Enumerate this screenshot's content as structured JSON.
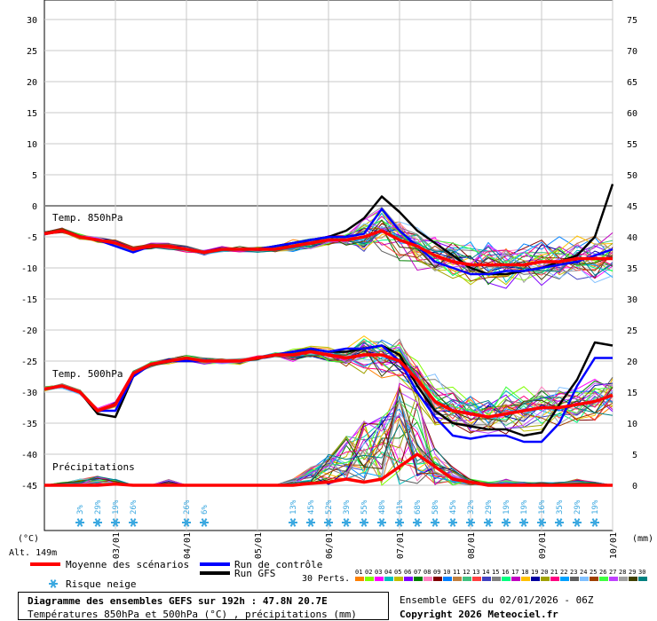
{
  "chart_data": {
    "type": "line",
    "title": "Diagramme des ensembles GEFS sur 192h : 47.8N 20.7E",
    "subtitle": "Températures 850hPa et 500hPa (°C) , précipitations (mm)",
    "left_axis": {
      "unit": "(°C)",
      "ticks": [
        30,
        25,
        20,
        15,
        10,
        5,
        0,
        -5,
        -10,
        -15,
        -20,
        -25,
        -30,
        -35,
        -40,
        -45
      ]
    },
    "right_axis": {
      "unit": "(mm)",
      "ticks": [
        75,
        70,
        65,
        60,
        55,
        50,
        45,
        40,
        35,
        30,
        25,
        20,
        15,
        10,
        5,
        0
      ]
    },
    "x_dates": [
      "03/01",
      "04/01",
      "05/01",
      "06/01",
      "07/01",
      "08/01",
      "09/01",
      "10/01"
    ],
    "altitude": "Alt. 149m",
    "panel_labels": {
      "t850": "Temp. 850hPa",
      "t500": "Temp. 500hPa",
      "precip": "Précipitations"
    },
    "legend": {
      "mean": {
        "label": "Moyenne des scénarios",
        "color": "#ff0000"
      },
      "control": {
        "label": "Run de contrôle",
        "color": "#0000ff"
      },
      "gfs": {
        "label": "Run GFS",
        "color": "#000000"
      },
      "snow": {
        "label": "Risque neige"
      },
      "perts": {
        "label": "30 Perts.",
        "numbers": [
          "01",
          "02",
          "03",
          "04",
          "05",
          "06",
          "07",
          "08",
          "09",
          "10",
          "11",
          "12",
          "13",
          "14",
          "15",
          "16",
          "17",
          "18",
          "19",
          "20",
          "21",
          "22",
          "23",
          "24",
          "25",
          "26",
          "27",
          "28",
          "29",
          "30"
        ],
        "colors": [
          "#ff8000",
          "#80ff00",
          "#ff00ff",
          "#00c0c0",
          "#c0c000",
          "#8000ff",
          "#008000",
          "#ff80c0",
          "#800000",
          "#0080ff",
          "#c08040",
          "#40c080",
          "#ff4040",
          "#4040c0",
          "#808080",
          "#00ff80",
          "#c000c0",
          "#ffc000",
          "#0000a0",
          "#a0a000",
          "#ff0080",
          "#00a0ff",
          "#606060",
          "#80c0ff",
          "#a04000",
          "#40ff40",
          "#c040ff",
          "#a0a0a0",
          "#404000",
          "#008080"
        ]
      }
    },
    "snow_risk": [
      {
        "step": 6,
        "pct": "3%"
      },
      {
        "step": 9,
        "pct": "29%"
      },
      {
        "step": 12,
        "pct": "19%"
      },
      {
        "step": 15,
        "pct": "26%"
      },
      {
        "step": 24,
        "pct": "26%"
      },
      {
        "step": 27,
        "pct": "6%"
      },
      {
        "step": 42,
        "pct": "13%"
      },
      {
        "step": 45,
        "pct": "45%"
      },
      {
        "step": 48,
        "pct": "52%"
      },
      {
        "step": 51,
        "pct": "39%"
      },
      {
        "step": 54,
        "pct": "55%"
      },
      {
        "step": 57,
        "pct": "48%"
      },
      {
        "step": 60,
        "pct": "61%"
      },
      {
        "step": 63,
        "pct": "68%"
      },
      {
        "step": 66,
        "pct": "58%"
      },
      {
        "step": 69,
        "pct": "45%"
      },
      {
        "step": 72,
        "pct": "32%"
      },
      {
        "step": 75,
        "pct": "29%"
      },
      {
        "step": 78,
        "pct": "19%"
      },
      {
        "step": 81,
        "pct": "19%"
      },
      {
        "step": 84,
        "pct": "16%"
      },
      {
        "step": 87,
        "pct": "35%"
      },
      {
        "step": 90,
        "pct": "29%"
      },
      {
        "step": 93,
        "pct": "19%"
      }
    ],
    "series_t850": {
      "mean": [
        -4.5,
        -4,
        -5,
        -5.5,
        -6,
        -7,
        -6.5,
        -6.5,
        -7,
        -7.5,
        -7,
        -7,
        -7,
        -7,
        -6.5,
        -6,
        -5.5,
        -5.5,
        -5,
        -4,
        -5.5,
        -6.5,
        -8,
        -9,
        -9.5,
        -9.5,
        -9.5,
        -9.5,
        -9,
        -9,
        -8.5,
        -8.5,
        -8.5
      ],
      "control": [
        -4.5,
        -4,
        -5,
        -5.5,
        -6.5,
        -7.5,
        -6.5,
        -6.5,
        -7,
        -7.5,
        -7,
        -7,
        -7,
        -6.5,
        -6,
        -5.5,
        -5,
        -5,
        -4.5,
        -0.5,
        -4,
        -6.5,
        -9,
        -10,
        -11,
        -11,
        -10.5,
        -10.5,
        -10,
        -9.5,
        -9,
        -8,
        -7
      ],
      "gfs": [
        -4.5,
        -4,
        -5,
        -5.5,
        -6,
        -7,
        -6.5,
        -6.5,
        -7,
        -7.5,
        -7,
        -7,
        -7,
        -6.5,
        -6,
        -5.5,
        -5,
        -4,
        -2,
        1.5,
        -1,
        -4,
        -6,
        -8,
        -10,
        -11,
        -11,
        -10.5,
        -10,
        -9,
        -8,
        -5,
        3.5
      ]
    },
    "series_t500": {
      "mean": [
        -29.5,
        -29,
        -30,
        -33,
        -32,
        -27,
        -25.5,
        -25,
        -24.5,
        -25,
        -25,
        -25,
        -24.5,
        -24,
        -24,
        -23.5,
        -24,
        -24.5,
        -24,
        -24,
        -25,
        -28,
        -31.5,
        -33,
        -33.5,
        -34,
        -33.5,
        -33,
        -32.5,
        -32.5,
        -32,
        -31.5,
        -30.5
      ],
      "control": [
        -29.5,
        -29,
        -30,
        -33,
        -33,
        -27.5,
        -25.5,
        -25,
        -25,
        -25,
        -25,
        -25,
        -24.5,
        -24,
        -23.5,
        -23,
        -23.5,
        -23,
        -23,
        -22.5,
        -25,
        -30,
        -34,
        -37,
        -37.5,
        -37,
        -37,
        -38,
        -38,
        -35,
        -29,
        -24.5,
        -24.5
      ],
      "gfs": [
        -29.5,
        -29,
        -30,
        -33.5,
        -34,
        -27.5,
        -25.5,
        -25,
        -25,
        -25,
        -25,
        -25,
        -24.5,
        -24,
        -23.5,
        -23,
        -23.5,
        -23.5,
        -23,
        -22.5,
        -24,
        -29,
        -33,
        -35,
        -35.5,
        -36,
        -36,
        -37,
        -36.5,
        -32,
        -28,
        -22,
        -22.5
      ]
    },
    "series_precip_mean": [
      0,
      0,
      0,
      0,
      0.2,
      0,
      0,
      0,
      0,
      0,
      0,
      0,
      0,
      0,
      0,
      0.3,
      0.5,
      1,
      0.5,
      1,
      3,
      5,
      3,
      1,
      0.5,
      0,
      0,
      0,
      0,
      0,
      0,
      0,
      0
    ],
    "series_precip_max": [
      0,
      0.5,
      1,
      1.5,
      1,
      0,
      0,
      1,
      0,
      0,
      0,
      0,
      0,
      0,
      1,
      3,
      5,
      8,
      11,
      13,
      18,
      15,
      6,
      3,
      1,
      0.5,
      1,
      0.5,
      0.5,
      0.5,
      1,
      0.5,
      0
    ]
  },
  "footer": {
    "title": "Diagramme des ensembles GEFS sur 192h : 47.8N 20.7E",
    "subtitle": "Températures 850hPa et 500hPa (°C) , précipitations (mm)",
    "run": "Ensemble GEFS du 02/01/2026 - 06Z",
    "copyright": "Copyright 2026 Meteociel.fr"
  }
}
